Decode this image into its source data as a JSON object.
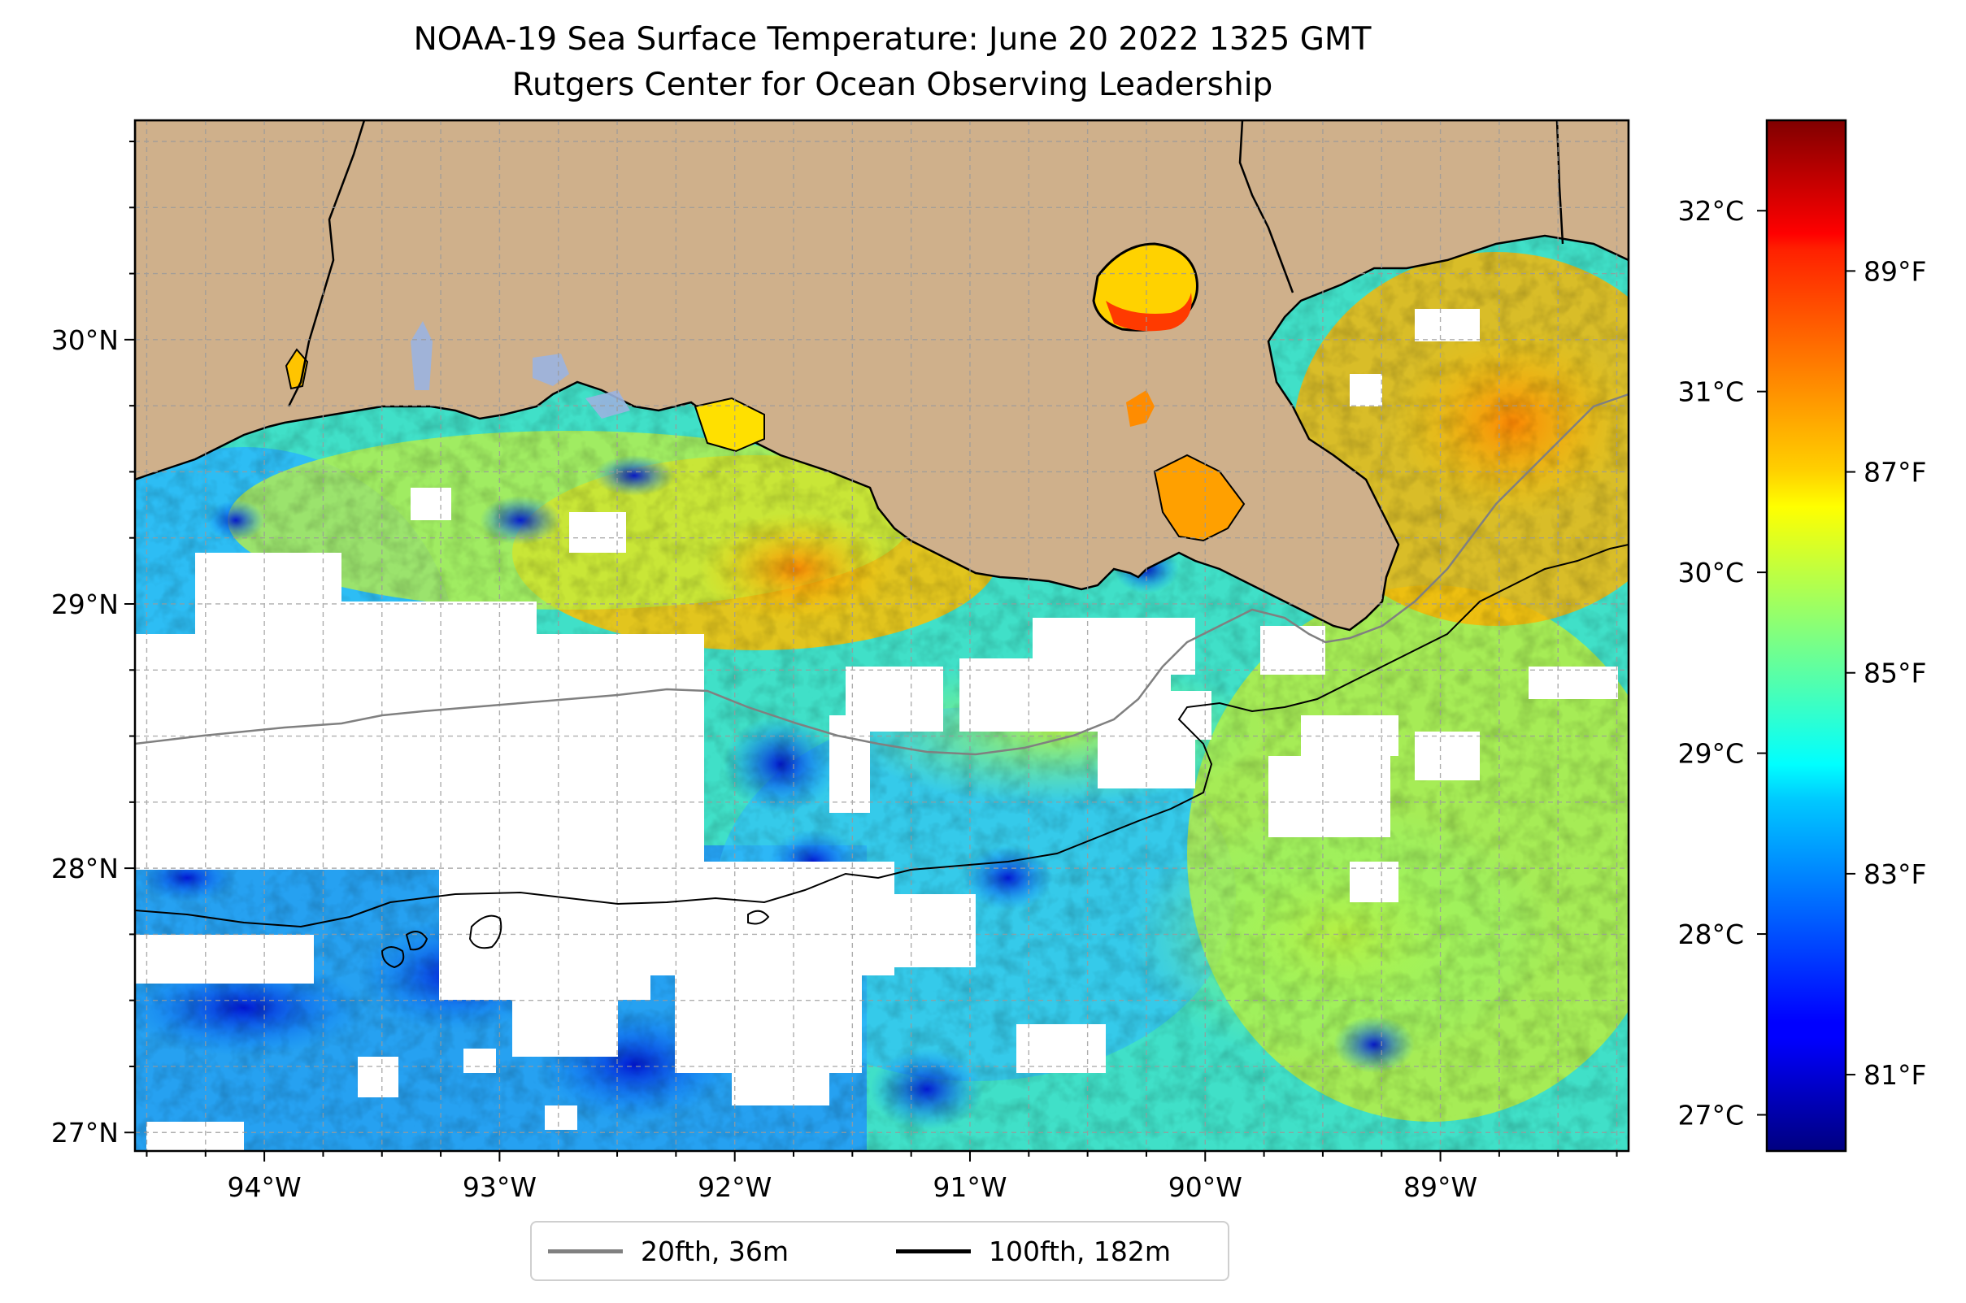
{
  "title": {
    "line1": "NOAA-19 Sea Surface Temperature: June 20 2022 1325 GMT",
    "line2": "Rutgers Center for Ocean Observing Leadership"
  },
  "map": {
    "region": "Northern Gulf of Mexico, Louisiana coast",
    "lon_range": [
      -94.55,
      -88.2
    ],
    "lat_range": [
      26.93,
      30.83
    ],
    "lon_ticks": [
      {
        "value": -94,
        "label": "94°W"
      },
      {
        "value": -93,
        "label": "93°W"
      },
      {
        "value": -92,
        "label": "92°W"
      },
      {
        "value": -91,
        "label": "91°W"
      },
      {
        "value": -90,
        "label": "90°W"
      },
      {
        "value": -89,
        "label": "89°W"
      }
    ],
    "lat_ticks": [
      {
        "value": 27,
        "label": "27°N"
      },
      {
        "value": 28,
        "label": "28°N"
      },
      {
        "value": 29,
        "label": "29°N"
      },
      {
        "value": 30,
        "label": "30°N"
      }
    ],
    "grid": true,
    "land_color": "#cfb08b",
    "no_data_color": "#ffffff"
  },
  "colorbar": {
    "colormap": "jet",
    "range_c": [
      26.8,
      32.5
    ],
    "celsius_ticks": [
      {
        "value": 27,
        "label": "27°C"
      },
      {
        "value": 28,
        "label": "28°C"
      },
      {
        "value": 29,
        "label": "29°C"
      },
      {
        "value": 30,
        "label": "30°C"
      },
      {
        "value": 31,
        "label": "31°C"
      },
      {
        "value": 32,
        "label": "32°C"
      }
    ],
    "fahrenheit_ticks": [
      {
        "value": 81,
        "label": "81°F"
      },
      {
        "value": 83,
        "label": "83°F"
      },
      {
        "value": 85,
        "label": "85°F"
      },
      {
        "value": 87,
        "label": "87°F"
      },
      {
        "value": 89,
        "label": "89°F"
      }
    ]
  },
  "legend": {
    "items": [
      {
        "label": "20fth, 36m",
        "color": "#808080"
      },
      {
        "label": "100fth, 182m",
        "color": "#000000"
      }
    ]
  }
}
